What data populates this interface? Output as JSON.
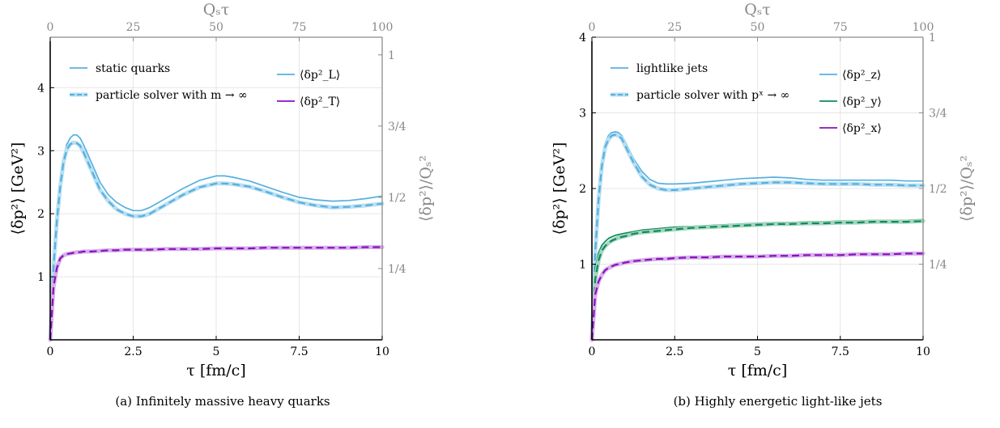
{
  "colors": {
    "blue": "#56b0e0",
    "blue_band": "#b8dff2",
    "green": "#108a5c",
    "green_band": "#a4d6c0",
    "purple": "#8a10c0",
    "purple_band": "#d6b0ea",
    "axis_gray": "#8c8c8c",
    "grid": "#e6e6e6"
  },
  "chart_data": [
    {
      "type": "line",
      "caption": "(a) Infinitely massive heavy quarks",
      "xlabel": "τ [fm/c]",
      "ylabel": "⟨δp²⟩ [GeV²]",
      "top_xlabel": "Qₛτ",
      "right_ylabel": "⟨δp²⟩/Qₛ²",
      "xlim": [
        0,
        10
      ],
      "ylim": [
        0,
        4.8
      ],
      "xticks": [
        "0",
        "2.5",
        "5",
        "7.5",
        "10"
      ],
      "yticks": [
        "1",
        "2",
        "3",
        "4"
      ],
      "top_xticks": [
        "0",
        "25",
        "50",
        "75",
        "100"
      ],
      "right_yticks": [
        "1/4",
        "1/2",
        "3/4",
        "1"
      ],
      "grid": true,
      "legend_methods": {
        "solid": "static quarks",
        "dashed": "particle solver with m → ∞"
      },
      "legend_components": [
        "⟨δp²_L⟩",
        "⟨δp²_T⟩"
      ],
      "x": [
        0,
        0.1,
        0.2,
        0.3,
        0.4,
        0.5,
        0.6,
        0.7,
        0.8,
        0.9,
        1.0,
        1.25,
        1.5,
        1.75,
        2.0,
        2.25,
        2.5,
        2.75,
        3.0,
        3.5,
        4.0,
        4.5,
        5.0,
        5.25,
        5.5,
        6.0,
        6.5,
        7.0,
        7.5,
        8.0,
        8.5,
        9.0,
        9.5,
        10.0
      ],
      "series": [
        {
          "name": "⟨δp²_L⟩",
          "color_key": "blue",
          "style": "solid",
          "values": [
            0,
            1.2,
            1.95,
            2.5,
            2.9,
            3.1,
            3.2,
            3.25,
            3.25,
            3.2,
            3.1,
            2.8,
            2.5,
            2.3,
            2.18,
            2.1,
            2.05,
            2.05,
            2.1,
            2.25,
            2.4,
            2.53,
            2.6,
            2.6,
            2.58,
            2.52,
            2.43,
            2.34,
            2.26,
            2.22,
            2.2,
            2.21,
            2.24,
            2.28
          ]
        },
        {
          "name": "⟨δp²_L⟩",
          "color_key": "blue",
          "style": "dashed",
          "values": [
            0,
            1.15,
            1.88,
            2.42,
            2.82,
            3.02,
            3.1,
            3.13,
            3.12,
            3.08,
            2.98,
            2.68,
            2.38,
            2.2,
            2.07,
            2.0,
            1.96,
            1.96,
            2.0,
            2.15,
            2.3,
            2.42,
            2.48,
            2.48,
            2.47,
            2.43,
            2.35,
            2.26,
            2.18,
            2.13,
            2.1,
            2.11,
            2.13,
            2.16
          ]
        },
        {
          "name": "⟨δp²_T⟩",
          "color_key": "purple",
          "style": "solid",
          "values": [
            0,
            0.85,
            1.15,
            1.3,
            1.35,
            1.37,
            1.38,
            1.39,
            1.39,
            1.4,
            1.4,
            1.41,
            1.42,
            1.42,
            1.43,
            1.43,
            1.43,
            1.43,
            1.44,
            1.44,
            1.44,
            1.45,
            1.45,
            1.45,
            1.45,
            1.46,
            1.46,
            1.46,
            1.46,
            1.46,
            1.47,
            1.47,
            1.47,
            1.47
          ]
        },
        {
          "name": "⟨δp²_T⟩",
          "color_key": "purple",
          "style": "dashed",
          "values": [
            0,
            0.84,
            1.14,
            1.29,
            1.34,
            1.36,
            1.37,
            1.38,
            1.39,
            1.39,
            1.4,
            1.4,
            1.41,
            1.42,
            1.42,
            1.43,
            1.43,
            1.43,
            1.43,
            1.44,
            1.44,
            1.44,
            1.45,
            1.45,
            1.45,
            1.45,
            1.46,
            1.46,
            1.46,
            1.46,
            1.46,
            1.46,
            1.47,
            1.47
          ]
        }
      ]
    },
    {
      "type": "line",
      "caption": "(b) Highly energetic light-like jets",
      "xlabel": "τ [fm/c]",
      "ylabel": "⟨δp²⟩ [GeV²]",
      "top_xlabel": "Qₛτ",
      "right_ylabel": "⟨δp²⟩/Qₛ²",
      "xlim": [
        0,
        10
      ],
      "ylim": [
        0,
        4
      ],
      "xticks": [
        "0",
        "2.5",
        "5",
        "7.5",
        "10"
      ],
      "yticks": [
        "1",
        "2",
        "3",
        "4"
      ],
      "top_xticks": [
        "0",
        "25",
        "50",
        "75",
        "100"
      ],
      "right_yticks": [
        "1/4",
        "1/2",
        "3/4",
        "1"
      ],
      "grid": true,
      "legend_methods": {
        "solid": "lightlike jets",
        "dashed": "particle solver with pˣ → ∞"
      },
      "legend_components": [
        "⟨δp²_z⟩",
        "⟨δp²_y⟩",
        "⟨δp²_x⟩"
      ],
      "x": [
        0,
        0.1,
        0.2,
        0.3,
        0.4,
        0.5,
        0.6,
        0.7,
        0.8,
        0.9,
        1.0,
        1.25,
        1.5,
        1.75,
        2.0,
        2.25,
        2.5,
        3.0,
        3.5,
        4.0,
        4.5,
        5.0,
        5.5,
        6.0,
        6.5,
        7.0,
        7.5,
        8.0,
        8.5,
        9.0,
        9.5,
        10.0
      ],
      "series": [
        {
          "name": "⟨δp²_z⟩",
          "color_key": "blue",
          "style": "solid",
          "values": [
            0,
            1.2,
            1.9,
            2.35,
            2.6,
            2.7,
            2.74,
            2.75,
            2.74,
            2.7,
            2.62,
            2.4,
            2.23,
            2.12,
            2.07,
            2.06,
            2.06,
            2.07,
            2.09,
            2.11,
            2.13,
            2.14,
            2.15,
            2.14,
            2.12,
            2.11,
            2.11,
            2.11,
            2.11,
            2.11,
            2.1,
            2.1
          ]
        },
        {
          "name": "⟨δp²_z⟩",
          "color_key": "blue",
          "style": "dashed",
          "values": [
            0,
            1.15,
            1.85,
            2.3,
            2.55,
            2.65,
            2.7,
            2.71,
            2.7,
            2.66,
            2.57,
            2.35,
            2.16,
            2.05,
            2.0,
            1.98,
            1.98,
            2.0,
            2.02,
            2.04,
            2.06,
            2.07,
            2.08,
            2.08,
            2.07,
            2.06,
            2.06,
            2.06,
            2.05,
            2.05,
            2.04,
            2.04
          ]
        },
        {
          "name": "⟨δp²_y⟩",
          "color_key": "green",
          "style": "solid",
          "values": [
            0,
            0.95,
            1.15,
            1.25,
            1.3,
            1.34,
            1.36,
            1.38,
            1.39,
            1.4,
            1.41,
            1.43,
            1.45,
            1.46,
            1.47,
            1.48,
            1.49,
            1.5,
            1.51,
            1.52,
            1.53,
            1.54,
            1.55,
            1.55,
            1.56,
            1.56,
            1.57,
            1.57,
            1.58,
            1.58,
            1.58,
            1.59
          ]
        },
        {
          "name": "⟨δp²_y⟩",
          "color_key": "green",
          "style": "dashed",
          "values": [
            0,
            0.8,
            1.05,
            1.18,
            1.24,
            1.28,
            1.31,
            1.33,
            1.35,
            1.36,
            1.37,
            1.4,
            1.42,
            1.43,
            1.44,
            1.45,
            1.46,
            1.48,
            1.49,
            1.5,
            1.51,
            1.52,
            1.53,
            1.53,
            1.54,
            1.54,
            1.55,
            1.55,
            1.56,
            1.56,
            1.56,
            1.57
          ]
        },
        {
          "name": "⟨δp²_x⟩",
          "color_key": "purple",
          "style": "solid",
          "values": [
            0,
            0.6,
            0.78,
            0.87,
            0.92,
            0.95,
            0.97,
            0.99,
            1.0,
            1.01,
            1.02,
            1.04,
            1.05,
            1.06,
            1.07,
            1.07,
            1.08,
            1.09,
            1.09,
            1.1,
            1.1,
            1.11,
            1.11,
            1.11,
            1.12,
            1.12,
            1.12,
            1.13,
            1.13,
            1.13,
            1.14,
            1.14
          ]
        },
        {
          "name": "⟨δp²_x⟩",
          "color_key": "purple",
          "style": "dashed",
          "values": [
            0,
            0.6,
            0.77,
            0.86,
            0.92,
            0.95,
            0.97,
            0.99,
            1.0,
            1.01,
            1.02,
            1.04,
            1.05,
            1.06,
            1.07,
            1.07,
            1.08,
            1.09,
            1.09,
            1.1,
            1.1,
            1.1,
            1.11,
            1.11,
            1.12,
            1.12,
            1.12,
            1.13,
            1.13,
            1.13,
            1.14,
            1.14
          ]
        }
      ]
    }
  ]
}
